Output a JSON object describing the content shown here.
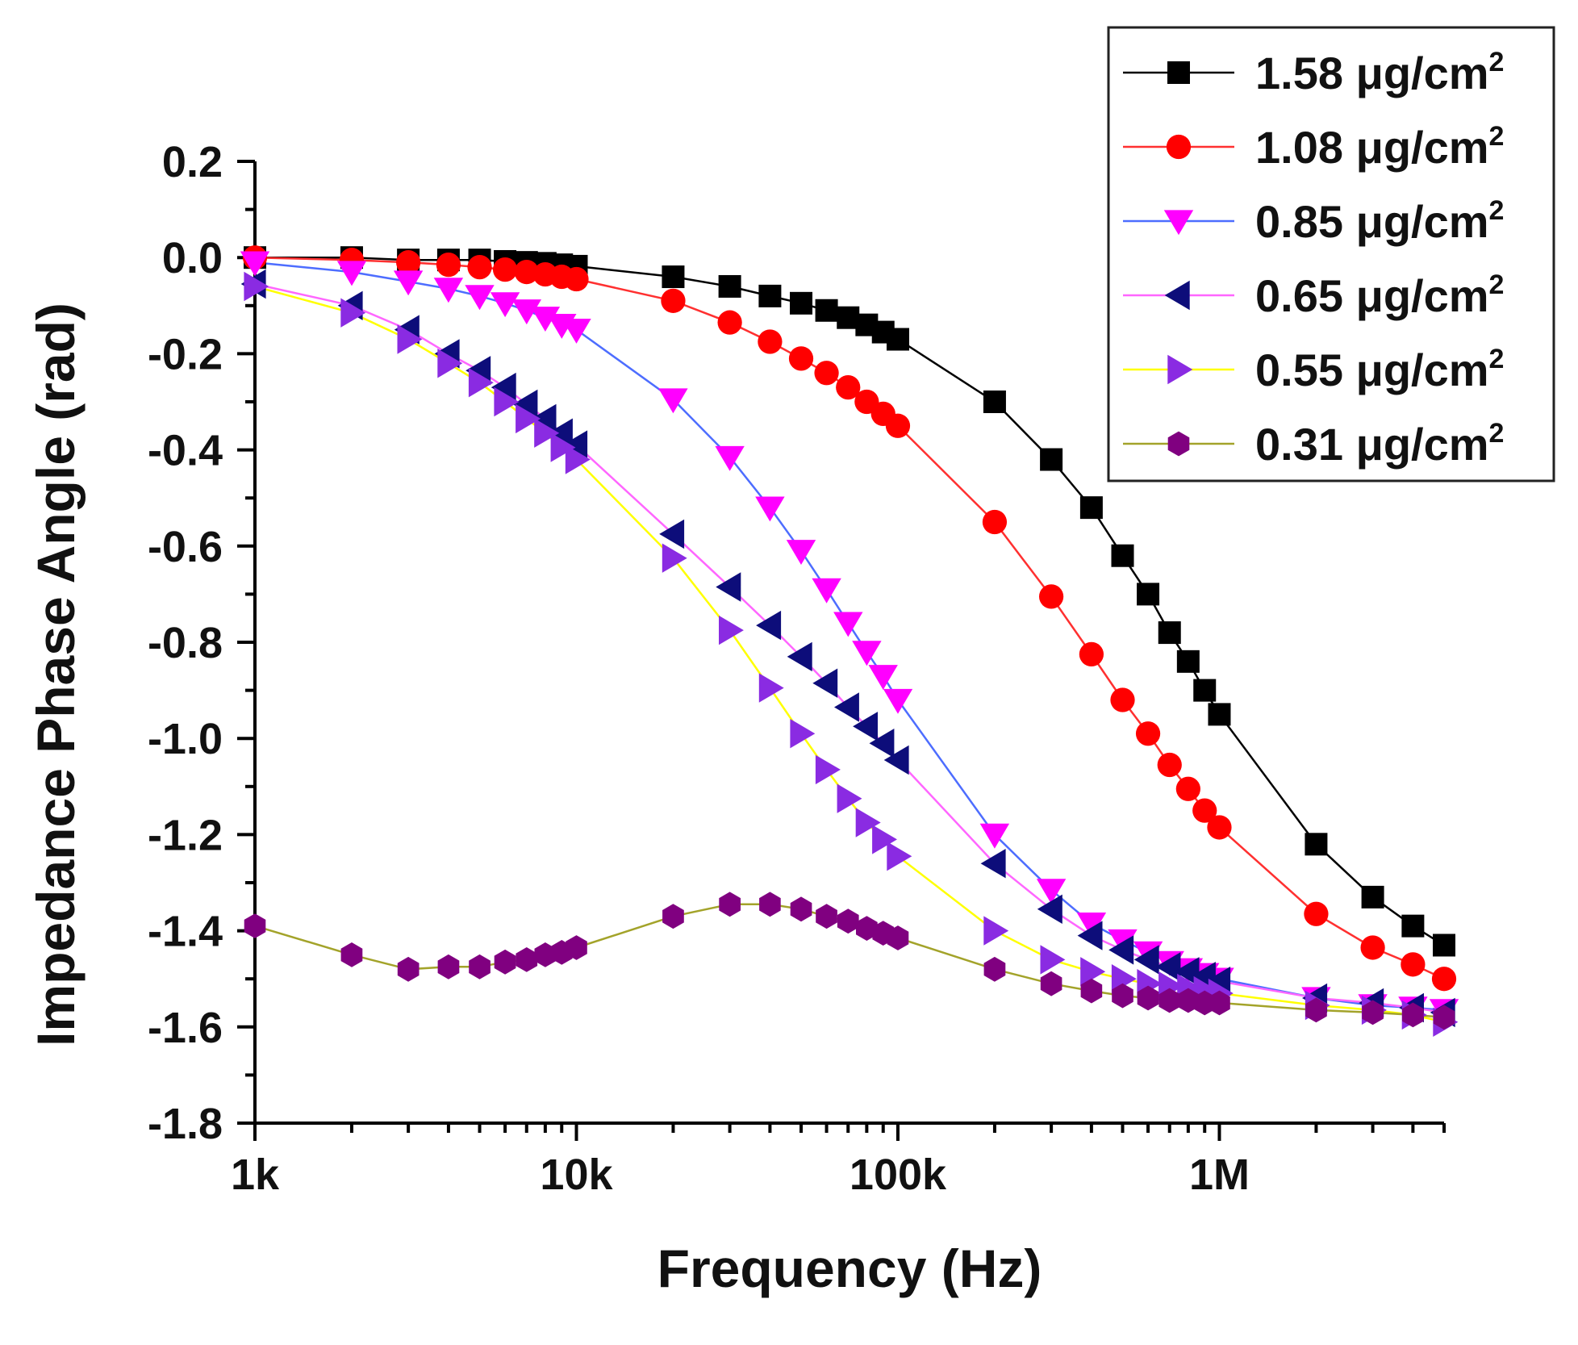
{
  "chart_data": {
    "type": "scatter",
    "title": "",
    "xlabel": "Frequency (Hz)",
    "ylabel": "Impedance Phase Angle (rad)",
    "xscale": "log",
    "xlim": [
      1000,
      5000000
    ],
    "ylim": [
      -1.8,
      0.2
    ],
    "legend_position": "top-right",
    "x_ticks": [
      {
        "value": 1000,
        "label": "1k"
      },
      {
        "value": 10000,
        "label": "10k"
      },
      {
        "value": 100000,
        "label": "100k"
      },
      {
        "value": 1000000,
        "label": "1M"
      }
    ],
    "y_ticks": [
      {
        "value": 0.2,
        "label": "0.2"
      },
      {
        "value": 0.0,
        "label": "0.0"
      },
      {
        "value": -0.2,
        "label": "-0.2"
      },
      {
        "value": -0.4,
        "label": "-0.4"
      },
      {
        "value": -0.6,
        "label": "-0.6"
      },
      {
        "value": -0.8,
        "label": "-0.8"
      },
      {
        "value": -1.0,
        "label": "-1.0"
      },
      {
        "value": -1.2,
        "label": "-1.2"
      },
      {
        "value": -1.4,
        "label": "-1.4"
      },
      {
        "value": -1.6,
        "label": "-1.6"
      },
      {
        "value": -1.8,
        "label": "-1.8"
      }
    ],
    "series": [
      {
        "name": "1.58",
        "unit": "μg/cm",
        "sup": "2",
        "marker": "square",
        "color": "#000000",
        "line_color": "#000000",
        "x": [
          1000,
          2000,
          3000,
          4000,
          5000,
          6000,
          7000,
          8000,
          9000,
          10000,
          20000,
          30000,
          40000,
          50000,
          60000,
          70000,
          80000,
          90000,
          100000,
          200000,
          300000,
          400000,
          500000,
          600000,
          700000,
          800000,
          900000,
          1000000,
          2000000,
          3000000,
          4000000,
          5000000
        ],
        "y": [
          0.0,
          0.0,
          -0.005,
          -0.005,
          -0.005,
          -0.008,
          -0.01,
          -0.012,
          -0.015,
          -0.018,
          -0.04,
          -0.06,
          -0.08,
          -0.095,
          -0.11,
          -0.125,
          -0.14,
          -0.155,
          -0.17,
          -0.3,
          -0.42,
          -0.52,
          -0.62,
          -0.7,
          -0.78,
          -0.84,
          -0.9,
          -0.95,
          -1.22,
          -1.33,
          -1.39,
          -1.43
        ]
      },
      {
        "name": "1.08",
        "unit": "μg/cm",
        "sup": "2",
        "marker": "circle",
        "color": "#ff0000",
        "line_color": "#ff3030",
        "x": [
          1000,
          2000,
          3000,
          4000,
          5000,
          6000,
          7000,
          8000,
          9000,
          10000,
          20000,
          30000,
          40000,
          50000,
          60000,
          70000,
          80000,
          90000,
          100000,
          200000,
          300000,
          400000,
          500000,
          600000,
          700000,
          800000,
          900000,
          1000000,
          2000000,
          3000000,
          4000000,
          5000000
        ],
        "y": [
          0.0,
          -0.005,
          -0.01,
          -0.015,
          -0.02,
          -0.025,
          -0.03,
          -0.035,
          -0.04,
          -0.045,
          -0.09,
          -0.135,
          -0.175,
          -0.21,
          -0.24,
          -0.27,
          -0.3,
          -0.325,
          -0.35,
          -0.55,
          -0.705,
          -0.825,
          -0.92,
          -0.99,
          -1.055,
          -1.105,
          -1.15,
          -1.185,
          -1.365,
          -1.435,
          -1.47,
          -1.5
        ]
      },
      {
        "name": "0.85",
        "unit": "μg/cm",
        "sup": "2",
        "marker": "triangle-down",
        "color": "#ff00ff",
        "line_color": "#4d6dff",
        "x": [
          1000,
          2000,
          3000,
          4000,
          5000,
          6000,
          7000,
          8000,
          9000,
          10000,
          20000,
          30000,
          40000,
          50000,
          60000,
          70000,
          80000,
          90000,
          100000,
          200000,
          300000,
          400000,
          500000,
          600000,
          700000,
          800000,
          900000,
          1000000,
          2000000,
          3000000,
          4000000,
          5000000
        ],
        "y": [
          -0.01,
          -0.03,
          -0.05,
          -0.065,
          -0.08,
          -0.095,
          -0.11,
          -0.125,
          -0.14,
          -0.15,
          -0.295,
          -0.415,
          -0.52,
          -0.61,
          -0.69,
          -0.76,
          -0.82,
          -0.87,
          -0.92,
          -1.2,
          -1.315,
          -1.385,
          -1.42,
          -1.445,
          -1.465,
          -1.48,
          -1.49,
          -1.5,
          -1.54,
          -1.555,
          -1.56,
          -1.565
        ]
      },
      {
        "name": "0.65",
        "unit": "μg/cm",
        "sup": "2",
        "marker": "triangle-left",
        "color": "#0d0d7a",
        "line_color": "#ff66ff",
        "x": [
          1000,
          2000,
          3000,
          4000,
          5000,
          6000,
          7000,
          8000,
          9000,
          10000,
          20000,
          30000,
          40000,
          50000,
          60000,
          70000,
          80000,
          90000,
          100000,
          200000,
          300000,
          400000,
          500000,
          600000,
          700000,
          800000,
          900000,
          1000000,
          2000000,
          3000000,
          4000000,
          5000000
        ],
        "y": [
          -0.055,
          -0.1,
          -0.15,
          -0.2,
          -0.235,
          -0.27,
          -0.305,
          -0.335,
          -0.365,
          -0.39,
          -0.575,
          -0.685,
          -0.765,
          -0.83,
          -0.885,
          -0.935,
          -0.975,
          -1.01,
          -1.045,
          -1.26,
          -1.355,
          -1.41,
          -1.44,
          -1.46,
          -1.475,
          -1.485,
          -1.495,
          -1.505,
          -1.54,
          -1.55,
          -1.56,
          -1.57
        ]
      },
      {
        "name": "0.55",
        "unit": "μg/cm",
        "sup": "2",
        "marker": "triangle-right",
        "color": "#8a2be2",
        "line_color": "#ffff00",
        "x": [
          1000,
          2000,
          3000,
          4000,
          5000,
          6000,
          7000,
          8000,
          9000,
          10000,
          20000,
          30000,
          40000,
          50000,
          60000,
          70000,
          80000,
          90000,
          100000,
          200000,
          300000,
          400000,
          500000,
          600000,
          700000,
          800000,
          900000,
          1000000,
          2000000,
          3000000,
          4000000,
          5000000
        ],
        "y": [
          -0.06,
          -0.115,
          -0.17,
          -0.22,
          -0.26,
          -0.3,
          -0.335,
          -0.365,
          -0.395,
          -0.42,
          -0.625,
          -0.775,
          -0.895,
          -0.99,
          -1.065,
          -1.125,
          -1.175,
          -1.21,
          -1.245,
          -1.4,
          -1.46,
          -1.485,
          -1.5,
          -1.51,
          -1.515,
          -1.52,
          -1.525,
          -1.53,
          -1.555,
          -1.565,
          -1.575,
          -1.59
        ]
      },
      {
        "name": "0.31",
        "unit": "μg/cm",
        "sup": "2",
        "marker": "hexagon",
        "color": "#800080",
        "line_color": "#a3a32a",
        "x": [
          1000,
          2000,
          3000,
          4000,
          5000,
          6000,
          7000,
          8000,
          9000,
          10000,
          20000,
          30000,
          40000,
          50000,
          60000,
          70000,
          80000,
          90000,
          100000,
          200000,
          300000,
          400000,
          500000,
          600000,
          700000,
          800000,
          900000,
          1000000,
          2000000,
          3000000,
          4000000,
          5000000
        ],
        "y": [
          -1.39,
          -1.45,
          -1.48,
          -1.475,
          -1.475,
          -1.465,
          -1.46,
          -1.45,
          -1.445,
          -1.435,
          -1.37,
          -1.345,
          -1.345,
          -1.355,
          -1.37,
          -1.38,
          -1.395,
          -1.405,
          -1.415,
          -1.48,
          -1.51,
          -1.525,
          -1.535,
          -1.54,
          -1.545,
          -1.545,
          -1.55,
          -1.55,
          -1.565,
          -1.57,
          -1.575,
          -1.58
        ]
      }
    ]
  }
}
